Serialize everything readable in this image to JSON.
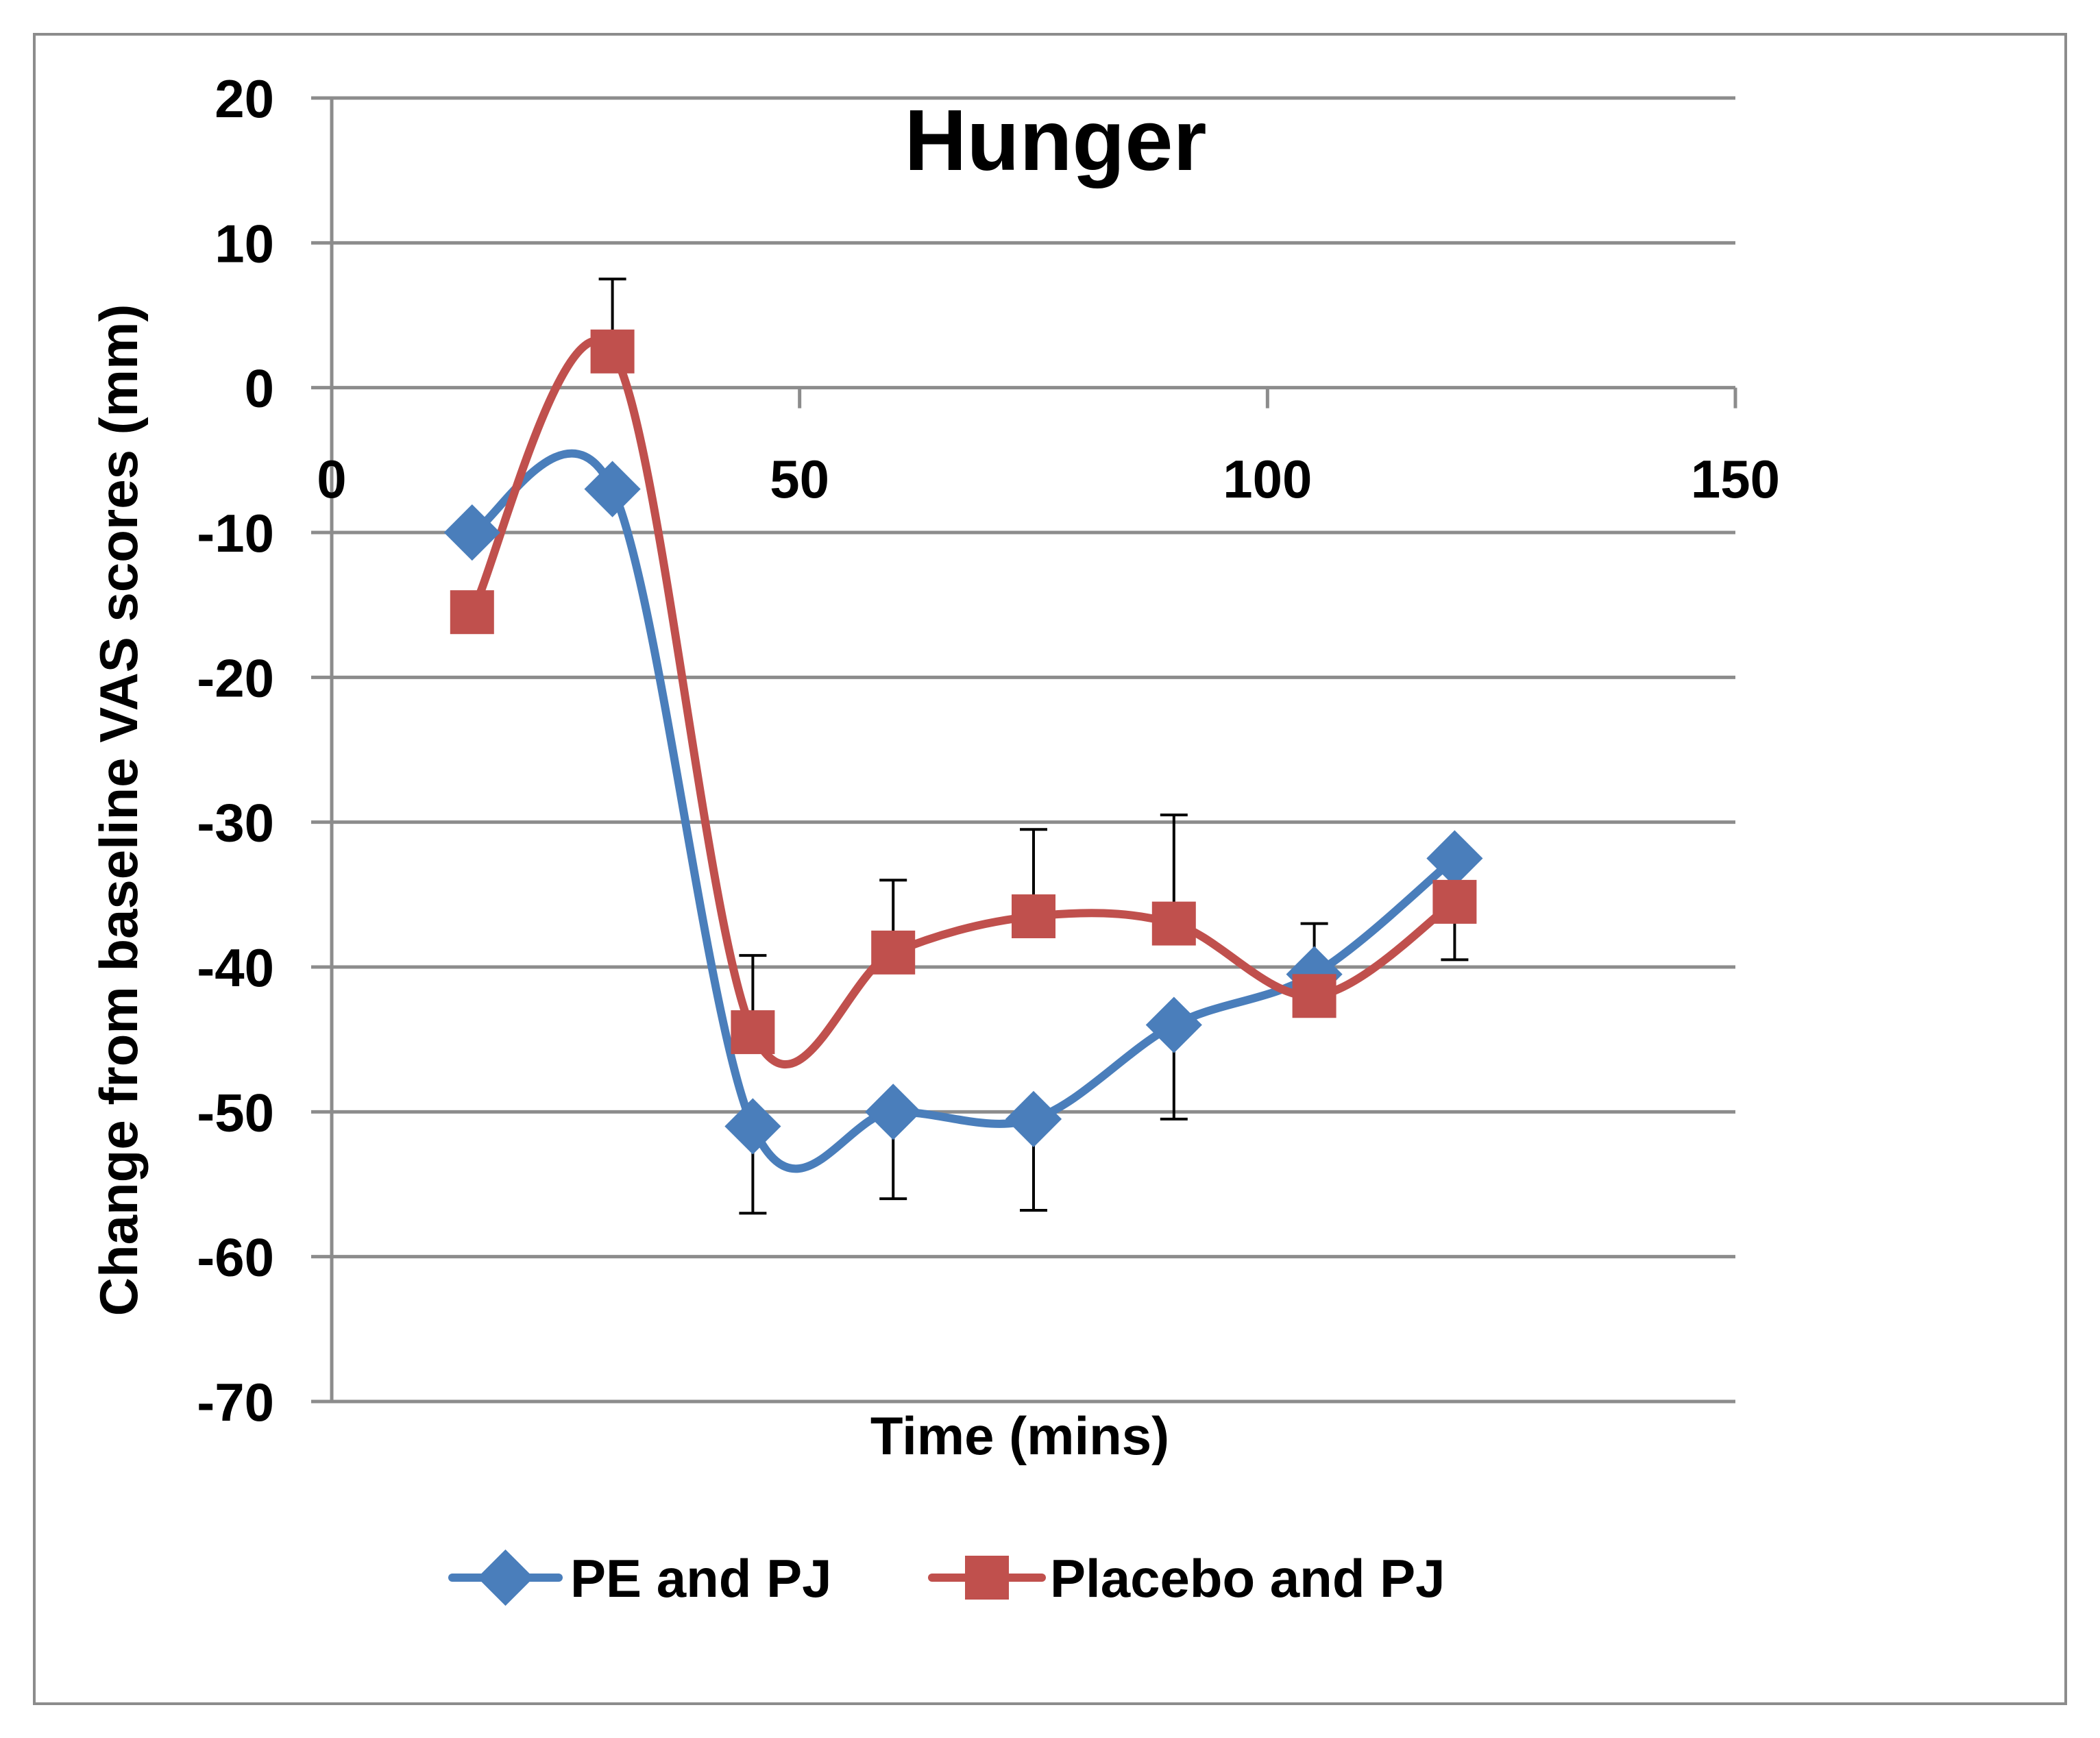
{
  "chart_data": {
    "type": "line",
    "title": "Hunger",
    "xlabel": "Time (mins)",
    "ylabel": "Change from baseline VAS scores (mm)",
    "xlim": [
      0,
      150
    ],
    "ylim": [
      -70,
      20
    ],
    "xticks": [
      0,
      50,
      100,
      150
    ],
    "yticks": [
      20,
      10,
      0,
      -10,
      -20,
      -30,
      -40,
      -50,
      -60,
      -70
    ],
    "grid": "horizontal",
    "legend_position": "bottom",
    "series": [
      {
        "name": "PE and PJ",
        "color": "#4a7ebb",
        "marker": "diamond",
        "x": [
          15,
          30,
          45,
          60,
          75,
          90,
          105,
          120
        ],
        "y": [
          -10,
          -7,
          -51,
          -50,
          -50.5,
          -44,
          -40.5,
          -32.5
        ],
        "err": [
          null,
          null,
          6,
          6,
          6.3,
          6.5,
          null,
          7
        ]
      },
      {
        "name": "Placebo and PJ",
        "color": "#c0504d",
        "marker": "square",
        "x": [
          15,
          30,
          45,
          60,
          75,
          90,
          105,
          120
        ],
        "y": [
          -15.5,
          2.5,
          -44.5,
          -39,
          -36.5,
          -37,
          -42,
          -35.5
        ],
        "err": [
          null,
          5,
          5.3,
          5,
          6,
          7.5,
          5,
          3.5
        ]
      }
    ]
  }
}
